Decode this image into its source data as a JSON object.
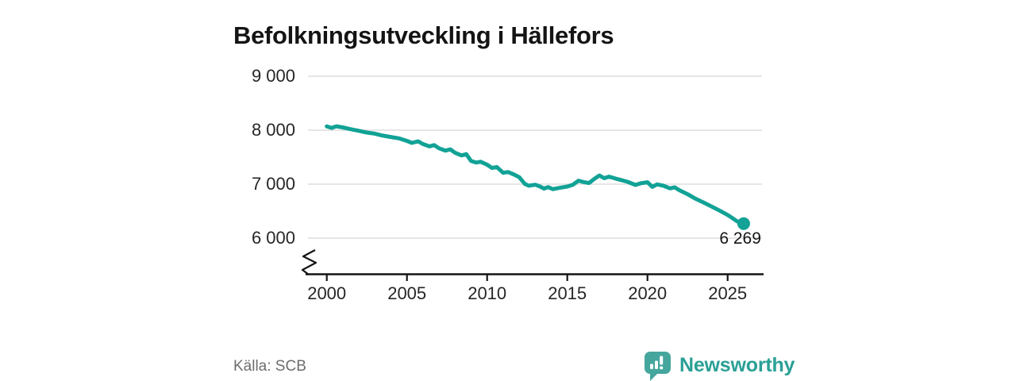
{
  "title": "Befolkningsutveckling i Hällefors",
  "source": "Källa: SCB",
  "branding": {
    "name": "Newsworthy",
    "icon": "newsworthy-chart-speech-bubble",
    "icon_color": "#44a69d",
    "text_color": "#2aa096"
  },
  "chart_data": {
    "type": "line",
    "title": "Befolkningsutveckling i Hällefors",
    "grid": "horizontal",
    "legend": "none",
    "axis_break": true,
    "line_color": "#12a296",
    "grid_color": "#d8d8d8",
    "axis_color": "#151515",
    "x_ticks": [
      2000,
      2005,
      2010,
      2015,
      2020,
      2025
    ],
    "x_tick_labels": [
      "2000",
      "2005",
      "2010",
      "2015",
      "2020",
      "2025"
    ],
    "y_ticks": [
      9000,
      8000,
      7000,
      6000
    ],
    "y_tick_labels": [
      "9 000",
      "8 000",
      "7 000",
      "6 000"
    ],
    "xlim": [
      1998.7,
      2027.2
    ],
    "ylim": [
      6000,
      9000
    ],
    "end_label": "6 269",
    "end_point": {
      "x": 2026,
      "y": 6269
    },
    "series": [
      {
        "color": "#12a296",
        "points": [
          [
            2000.0,
            8070
          ],
          [
            2000.3,
            8042
          ],
          [
            2000.6,
            8072
          ],
          [
            2001.0,
            8052
          ],
          [
            2001.5,
            8018
          ],
          [
            2002.0,
            7988
          ],
          [
            2002.5,
            7956
          ],
          [
            2003.0,
            7936
          ],
          [
            2003.5,
            7898
          ],
          [
            2004.0,
            7874
          ],
          [
            2004.5,
            7848
          ],
          [
            2005.0,
            7802
          ],
          [
            2005.3,
            7764
          ],
          [
            2005.7,
            7792
          ],
          [
            2006.0,
            7742
          ],
          [
            2006.4,
            7700
          ],
          [
            2006.7,
            7724
          ],
          [
            2007.0,
            7664
          ],
          [
            2007.4,
            7620
          ],
          [
            2007.7,
            7646
          ],
          [
            2008.0,
            7582
          ],
          [
            2008.4,
            7532
          ],
          [
            2008.7,
            7556
          ],
          [
            2009.0,
            7430
          ],
          [
            2009.3,
            7400
          ],
          [
            2009.6,
            7415
          ],
          [
            2010.0,
            7360
          ],
          [
            2010.3,
            7300
          ],
          [
            2010.6,
            7318
          ],
          [
            2011.0,
            7210
          ],
          [
            2011.3,
            7225
          ],
          [
            2011.7,
            7175
          ],
          [
            2012.0,
            7130
          ],
          [
            2012.35,
            7005
          ],
          [
            2012.6,
            6970
          ],
          [
            2013.0,
            6990
          ],
          [
            2013.3,
            6956
          ],
          [
            2013.55,
            6917
          ],
          [
            2013.8,
            6946
          ],
          [
            2014.1,
            6907
          ],
          [
            2014.5,
            6931
          ],
          [
            2015.0,
            6956
          ],
          [
            2015.35,
            6990
          ],
          [
            2015.7,
            7064
          ],
          [
            2016.0,
            7040
          ],
          [
            2016.35,
            7020
          ],
          [
            2016.7,
            7100
          ],
          [
            2017.0,
            7160
          ],
          [
            2017.3,
            7110
          ],
          [
            2017.6,
            7140
          ],
          [
            2018.0,
            7105
          ],
          [
            2018.4,
            7072
          ],
          [
            2018.75,
            7044
          ],
          [
            2019.25,
            6985
          ],
          [
            2019.6,
            7018
          ],
          [
            2020.0,
            7035
          ],
          [
            2020.3,
            6950
          ],
          [
            2020.6,
            6995
          ],
          [
            2021.0,
            6970
          ],
          [
            2021.4,
            6922
          ],
          [
            2021.7,
            6941
          ],
          [
            2022.0,
            6885
          ],
          [
            2022.5,
            6815
          ],
          [
            2023.0,
            6730
          ],
          [
            2023.5,
            6660
          ],
          [
            2024.0,
            6585
          ],
          [
            2024.5,
            6510
          ],
          [
            2025.0,
            6430
          ],
          [
            2025.3,
            6370
          ],
          [
            2025.6,
            6310
          ],
          [
            2025.8,
            6282
          ],
          [
            2026.0,
            6269
          ]
        ]
      }
    ]
  }
}
